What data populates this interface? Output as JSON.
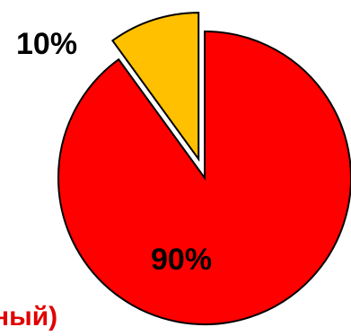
{
  "chart_data": {
    "type": "pie",
    "slices": [
      {
        "label": "10%",
        "value": 10,
        "color": "#FFC000",
        "exploded": true
      },
      {
        "label": "90%",
        "value": 90,
        "color": "#FF0000",
        "exploded": false
      }
    ],
    "annotation": "ный)",
    "annotation_color": "#E00000",
    "legend": "none",
    "title": ""
  }
}
